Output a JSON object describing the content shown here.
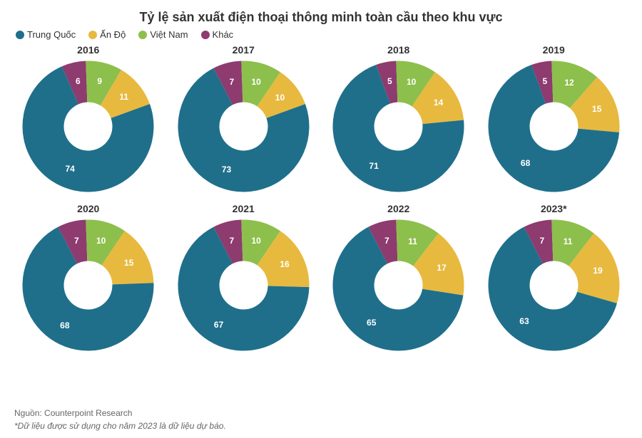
{
  "title": "Tỷ lệ sản xuất điện thoại thông minh toàn cầu theo khu vực",
  "legend": [
    {
      "label": "Trung Quốc",
      "color": "#1f6f8b"
    },
    {
      "label": "Ấn Độ",
      "color": "#e8b93f"
    },
    {
      "label": "Việt Nam",
      "color": "#8dbf4c"
    },
    {
      "label": "Khác",
      "color": "#8e3b6f"
    }
  ],
  "chart": {
    "type": "donut-small-multiples",
    "layout": {
      "cols": 4,
      "rows": 2
    },
    "donut": {
      "outer_radius": 92,
      "inner_radius": 34,
      "label_radius": 65,
      "start_angle_deg": -11
    },
    "background_color": "#ffffff",
    "title_fontsize": 18,
    "year_fontsize": 14,
    "value_fontsize": 12,
    "value_color": "#ffffff",
    "panels": [
      {
        "year": "2016",
        "values": [
          74,
          11,
          9,
          6
        ]
      },
      {
        "year": "2017",
        "values": [
          73,
          10,
          10,
          7
        ]
      },
      {
        "year": "2018",
        "values": [
          71,
          14,
          10,
          5
        ]
      },
      {
        "year": "2019",
        "values": [
          68,
          15,
          12,
          5
        ]
      },
      {
        "year": "2020",
        "values": [
          68,
          15,
          10,
          7
        ]
      },
      {
        "year": "2021",
        "values": [
          67,
          16,
          10,
          7
        ]
      },
      {
        "year": "2022",
        "values": [
          65,
          17,
          11,
          7
        ]
      },
      {
        "year": "2023*",
        "values": [
          63,
          19,
          11,
          7
        ]
      }
    ]
  },
  "source": "Nguồn: Counterpoint Research",
  "note": "*Dữ liệu được sử dụng cho năm 2023 là dữ liệu dự báo."
}
